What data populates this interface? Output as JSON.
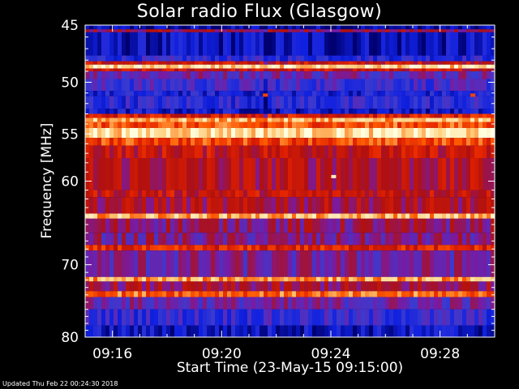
{
  "chart_data": {
    "type": "heatmap",
    "title": "Solar radio Flux (Glasgow)",
    "xlabel": "Start Time (23-May-15 09:15:00)",
    "ylabel": "Frequency [MHz]",
    "x_start": "09:15:00",
    "x_end": "09:30:00",
    "x_ticks": [
      {
        "label": "09:16",
        "minutes": 1
      },
      {
        "label": "09:20",
        "minutes": 5
      },
      {
        "label": "09:24",
        "minutes": 9
      },
      {
        "label": "09:28",
        "minutes": 13
      }
    ],
    "y_scale": "log",
    "ylim": [
      45,
      80
    ],
    "y_ticks": [
      {
        "label": "45",
        "value": 45
      },
      {
        "label": "50",
        "value": 50
      },
      {
        "label": "55",
        "value": 55
      },
      {
        "label": "60",
        "value": 60
      },
      {
        "label": "70",
        "value": 70
      },
      {
        "label": "80",
        "value": 80
      }
    ],
    "colormap": [
      "#000070",
      "#1020e0",
      "#3a3ad0",
      "#7a1aa0",
      "#b01010",
      "#e02000",
      "#ff5a00",
      "#ffd080",
      "#ffffe0"
    ],
    "bands": [
      {
        "f1": 45.0,
        "f2": 45.35,
        "level": 0.05
      },
      {
        "f1": 45.35,
        "f2": 45.6,
        "level": 0.45
      },
      {
        "f1": 45.6,
        "f2": 47.6,
        "level": 0.08
      },
      {
        "f1": 47.6,
        "f2": 48.1,
        "level": 0.2
      },
      {
        "f1": 48.1,
        "f2": 48.4,
        "level": 0.55
      },
      {
        "f1": 48.4,
        "f2": 48.75,
        "level": 0.9
      },
      {
        "f1": 48.75,
        "f2": 49.0,
        "level": 0.55
      },
      {
        "f1": 49.0,
        "f2": 49.7,
        "level": 0.35
      },
      {
        "f1": 49.7,
        "f2": 50.8,
        "level": 0.25
      },
      {
        "f1": 50.8,
        "f2": 51.3,
        "level": 0.15
      },
      {
        "f1": 51.3,
        "f2": 52.5,
        "level": 0.2
      },
      {
        "f1": 52.5,
        "f2": 53.0,
        "level": 0.12
      },
      {
        "f1": 53.0,
        "f2": 53.4,
        "level": 0.6
      },
      {
        "f1": 53.4,
        "f2": 53.8,
        "level": 0.85
      },
      {
        "f1": 53.8,
        "f2": 54.4,
        "level": 0.72
      },
      {
        "f1": 54.4,
        "f2": 55.4,
        "level": 0.92
      },
      {
        "f1": 55.4,
        "f2": 56.2,
        "level": 0.7
      },
      {
        "f1": 56.2,
        "f2": 57.5,
        "level": 0.55
      },
      {
        "f1": 57.5,
        "f2": 61.0,
        "level": 0.5
      },
      {
        "f1": 61.0,
        "f2": 61.8,
        "level": 0.55
      },
      {
        "f1": 61.8,
        "f2": 63.7,
        "level": 0.48
      },
      {
        "f1": 63.7,
        "f2": 64.3,
        "level": 0.85
      },
      {
        "f1": 64.3,
        "f2": 66.0,
        "level": 0.42
      },
      {
        "f1": 66.0,
        "f2": 67.5,
        "level": 0.38
      },
      {
        "f1": 67.5,
        "f2": 68.2,
        "level": 0.62
      },
      {
        "f1": 68.2,
        "f2": 71.6,
        "level": 0.36
      },
      {
        "f1": 71.6,
        "f2": 72.2,
        "level": 0.82
      },
      {
        "f1": 72.2,
        "f2": 73.5,
        "level": 0.45
      },
      {
        "f1": 73.5,
        "f2": 74.3,
        "level": 0.75
      },
      {
        "f1": 74.3,
        "f2": 76.0,
        "level": 0.34
      },
      {
        "f1": 76.0,
        "f2": 78.3,
        "level": 0.22
      },
      {
        "f1": 78.3,
        "f2": 80.0,
        "level": 0.1
      }
    ],
    "hotspots": [
      {
        "minutes": 9.1,
        "freq": 59.5,
        "level": 0.95
      },
      {
        "minutes": 6.6,
        "freq": 51.2,
        "level": 0.7
      },
      {
        "minutes": 14.2,
        "freq": 51.2,
        "level": 0.7
      }
    ]
  },
  "footer": {
    "updated": "Updated Thu Feb 22 00:24:30 2018"
  }
}
